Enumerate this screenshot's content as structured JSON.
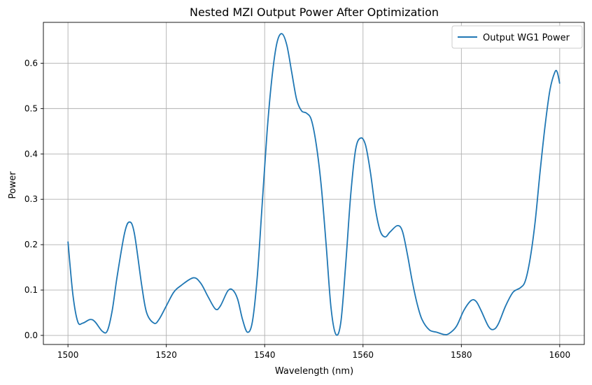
{
  "chart_data": {
    "type": "line",
    "title": "Nested MZI Output Power After Optimization",
    "xlabel": "Wavelength (nm)",
    "ylabel": "Power",
    "xlim": [
      1495,
      1605
    ],
    "ylim": [
      -0.02,
      0.69
    ],
    "xticks": [
      1500,
      1520,
      1540,
      1560,
      1580,
      1600
    ],
    "yticks": [
      0.0,
      0.1,
      0.2,
      0.3,
      0.4,
      0.5,
      0.6
    ],
    "xtick_labels": [
      "1500",
      "1520",
      "1540",
      "1560",
      "1580",
      "1600"
    ],
    "ytick_labels": [
      "0.0",
      "0.1",
      "0.2",
      "0.3",
      "0.4",
      "0.5",
      "0.6"
    ],
    "grid": true,
    "legend_position": "top-right",
    "series": [
      {
        "name": "Output WG1 Power",
        "color": "#1f77b4",
        "points": [
          [
            1500.0,
            0.207
          ],
          [
            1501.0,
            0.09
          ],
          [
            1502.0,
            0.03
          ],
          [
            1503.0,
            0.027
          ],
          [
            1504.5,
            0.035
          ],
          [
            1505.5,
            0.03
          ],
          [
            1507.0,
            0.009
          ],
          [
            1508.0,
            0.01
          ],
          [
            1509.0,
            0.055
          ],
          [
            1510.0,
            0.13
          ],
          [
            1511.5,
            0.225
          ],
          [
            1512.5,
            0.25
          ],
          [
            1513.5,
            0.225
          ],
          [
            1515.0,
            0.11
          ],
          [
            1516.0,
            0.05
          ],
          [
            1517.5,
            0.027
          ],
          [
            1518.5,
            0.035
          ],
          [
            1520.0,
            0.065
          ],
          [
            1521.5,
            0.095
          ],
          [
            1523.0,
            0.11
          ],
          [
            1525.5,
            0.127
          ],
          [
            1527.0,
            0.115
          ],
          [
            1528.5,
            0.085
          ],
          [
            1530.0,
            0.058
          ],
          [
            1531.0,
            0.065
          ],
          [
            1532.5,
            0.098
          ],
          [
            1533.5,
            0.1
          ],
          [
            1534.5,
            0.08
          ],
          [
            1535.5,
            0.035
          ],
          [
            1536.5,
            0.007
          ],
          [
            1537.5,
            0.03
          ],
          [
            1538.5,
            0.13
          ],
          [
            1539.5,
            0.29
          ],
          [
            1540.5,
            0.45
          ],
          [
            1541.5,
            0.57
          ],
          [
            1542.5,
            0.645
          ],
          [
            1543.5,
            0.665
          ],
          [
            1544.5,
            0.64
          ],
          [
            1545.5,
            0.58
          ],
          [
            1546.5,
            0.52
          ],
          [
            1547.5,
            0.495
          ],
          [
            1548.5,
            0.49
          ],
          [
            1549.5,
            0.475
          ],
          [
            1550.5,
            0.42
          ],
          [
            1551.5,
            0.33
          ],
          [
            1552.5,
            0.2
          ],
          [
            1553.5,
            0.06
          ],
          [
            1554.5,
            0.002
          ],
          [
            1555.5,
            0.03
          ],
          [
            1556.5,
            0.16
          ],
          [
            1557.5,
            0.31
          ],
          [
            1558.5,
            0.41
          ],
          [
            1559.5,
            0.435
          ],
          [
            1560.5,
            0.42
          ],
          [
            1561.5,
            0.36
          ],
          [
            1562.5,
            0.28
          ],
          [
            1563.5,
            0.23
          ],
          [
            1564.5,
            0.217
          ],
          [
            1565.5,
            0.228
          ],
          [
            1567.0,
            0.242
          ],
          [
            1568.0,
            0.23
          ],
          [
            1569.0,
            0.18
          ],
          [
            1570.0,
            0.12
          ],
          [
            1571.0,
            0.07
          ],
          [
            1572.0,
            0.035
          ],
          [
            1573.5,
            0.012
          ],
          [
            1575.0,
            0.007
          ],
          [
            1576.5,
            0.002
          ],
          [
            1577.5,
            0.004
          ],
          [
            1579.0,
            0.02
          ],
          [
            1580.5,
            0.055
          ],
          [
            1582.0,
            0.077
          ],
          [
            1583.0,
            0.075
          ],
          [
            1584.0,
            0.055
          ],
          [
            1585.5,
            0.02
          ],
          [
            1586.5,
            0.013
          ],
          [
            1587.5,
            0.025
          ],
          [
            1589.0,
            0.065
          ],
          [
            1590.5,
            0.095
          ],
          [
            1592.0,
            0.105
          ],
          [
            1593.0,
            0.12
          ],
          [
            1594.0,
            0.17
          ],
          [
            1595.0,
            0.25
          ],
          [
            1596.0,
            0.36
          ],
          [
            1597.0,
            0.46
          ],
          [
            1598.0,
            0.54
          ],
          [
            1599.0,
            0.58
          ],
          [
            1599.5,
            0.58
          ],
          [
            1600.0,
            0.555
          ]
        ]
      }
    ]
  }
}
